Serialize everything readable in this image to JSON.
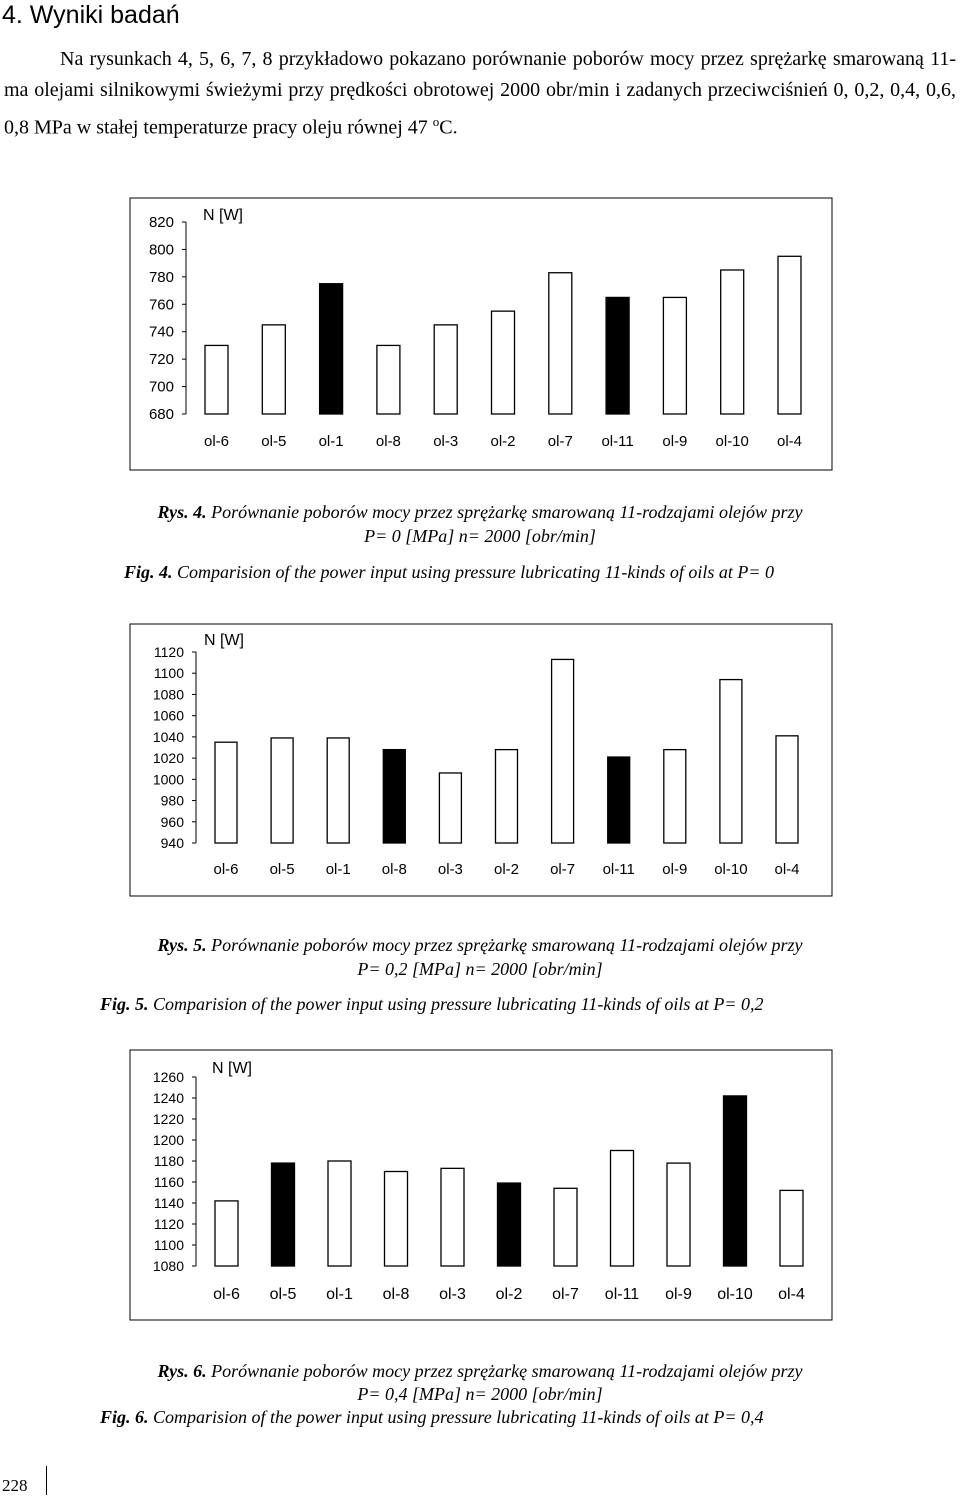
{
  "section_heading": "4. Wyniki badań",
  "intro": {
    "before_sup": "Na rysunkach 4, 5, 6, 7, 8 przykładowo pokazano porównanie poborów mocy przez sprężarkę smarowaną 11-ma olejami silnikowymi świeżymi przy prędkości obrotowej 2000 obr/min i zadanych przeciwciśnień 0, 0,2, 0,4, 0,6, 0,8 MPa w stałej temperaturze pracy oleju równej 47",
    "sup": "o",
    "after_sup": "C."
  },
  "chart_data": [
    {
      "type": "bar",
      "ylabel": "N [W]",
      "categories": [
        "ol-6",
        "ol-5",
        "ol-1",
        "ol-8",
        "ol-3",
        "ol-2",
        "ol-7",
        "ol-11",
        "ol-9",
        "ol-10",
        "ol-4"
      ],
      "values": [
        730,
        745,
        775,
        730,
        745,
        755,
        783,
        765,
        765,
        785,
        795
      ],
      "highlighted": [
        "ol-1",
        "ol-11"
      ],
      "yticks": [
        680,
        700,
        720,
        740,
        760,
        780,
        800,
        820
      ],
      "ylim": [
        680,
        820
      ],
      "grid": false,
      "bar_fill": "#ffffff",
      "highlight_fill": "#000000"
    },
    {
      "type": "bar",
      "ylabel": "N [W]",
      "categories": [
        "ol-6",
        "ol-5",
        "ol-1",
        "ol-8",
        "ol-3",
        "ol-2",
        "ol-7",
        "ol-11",
        "ol-9",
        "ol-10",
        "ol-4"
      ],
      "values": [
        1035,
        1039,
        1039,
        1028,
        1006,
        1028,
        1113,
        1021,
        1028,
        1094,
        1041
      ],
      "highlighted": [
        "ol-8",
        "ol-11"
      ],
      "yticks": [
        940,
        960,
        980,
        1000,
        1020,
        1040,
        1060,
        1080,
        1100,
        1120
      ],
      "ylim": [
        940,
        1120
      ],
      "grid": false,
      "bar_fill": "#ffffff",
      "highlight_fill": "#000000"
    },
    {
      "type": "bar",
      "ylabel": "N [W]",
      "categories": [
        "ol-6",
        "ol-5",
        "ol-1",
        "ol-8",
        "ol-3",
        "ol-2",
        "ol-7",
        "ol-11",
        "ol-9",
        "ol-10",
        "ol-4"
      ],
      "values": [
        1142,
        1178,
        1180,
        1170,
        1173,
        1159,
        1154,
        1190,
        1178,
        1242,
        1152
      ],
      "highlighted": [
        "ol-5",
        "ol-2",
        "ol-10"
      ],
      "yticks": [
        1080,
        1100,
        1120,
        1140,
        1160,
        1180,
        1200,
        1220,
        1240,
        1260
      ],
      "ylim": [
        1080,
        1260
      ],
      "grid": false,
      "bar_fill": "#ffffff",
      "highlight_fill": "#000000"
    }
  ],
  "captions": [
    {
      "pl_label": "Rys. 4.",
      "pl_text": "Porównanie poborów mocy przez sprężarkę smarowaną 11-rodzajami olejów przy",
      "pl_line2": "P= 0 [MPa] n= 2000 [obr/min]",
      "en_label": "Fig. 4.",
      "en_text": "Comparision of the power input using pressure lubricating 11-kinds of oils at P= 0"
    },
    {
      "pl_label": "Rys. 5.",
      "pl_text": "Porównanie poborów mocy przez sprężarkę smarowaną 11-rodzajami olejów przy",
      "pl_line2": "P= 0,2 [MPa] n= 2000 [obr/min]",
      "en_label": "Fig. 5.",
      "en_text": "Comparision of the power input using pressure lubricating 11-kinds of oils at P= 0,2"
    },
    {
      "pl_label": "Rys. 6.",
      "pl_text": "Porównanie poborów mocy przez sprężarkę smarowaną 11-rodzajami olejów przy",
      "pl_line2": "P= 0,4 [MPa] n= 2000 [obr/min]",
      "en_label": "Fig. 6.",
      "en_text": "Comparision of the power input using pressure lubricating 11-kinds of oils at P= 0,4"
    }
  ],
  "page_number": "228"
}
